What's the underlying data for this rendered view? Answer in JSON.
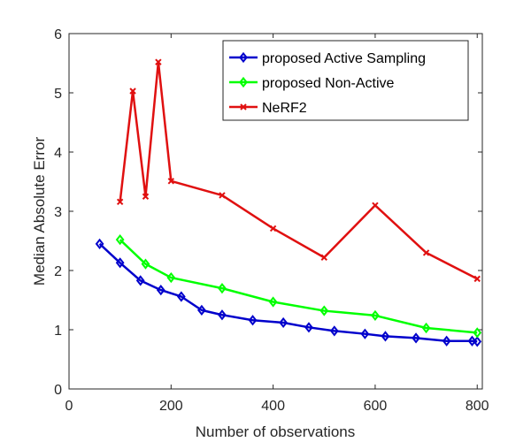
{
  "chart_data": {
    "type": "line",
    "title": "",
    "xlabel": "Number of observations",
    "ylabel": "Median Absolute Error",
    "xlim": [
      0,
      810
    ],
    "ylim": [
      0,
      6
    ],
    "xticks": [
      0,
      200,
      400,
      600,
      800
    ],
    "yticks": [
      0,
      1,
      2,
      3,
      4,
      5,
      6
    ],
    "grid": false,
    "legend_position": "top-right",
    "series": [
      {
        "name": "proposed Active Sampling",
        "color": "#0000cc",
        "marker": "diamond",
        "x": [
          60,
          100,
          140,
          180,
          220,
          260,
          300,
          360,
          420,
          470,
          520,
          580,
          620,
          680,
          740,
          790,
          800
        ],
        "y": [
          2.45,
          2.13,
          1.83,
          1.67,
          1.56,
          1.33,
          1.25,
          1.16,
          1.12,
          1.04,
          0.98,
          0.93,
          0.89,
          0.86,
          0.81,
          0.81,
          0.8
        ]
      },
      {
        "name": "proposed Non-Active",
        "color": "#00ff00",
        "marker": "diamond",
        "x": [
          100,
          150,
          200,
          300,
          400,
          500,
          600,
          700,
          800
        ],
        "y": [
          2.52,
          2.11,
          1.88,
          1.7,
          1.47,
          1.32,
          1.24,
          1.03,
          0.95
        ]
      },
      {
        "name": "NeRF2",
        "color": "#e01010",
        "marker": "x",
        "x": [
          100,
          125,
          150,
          175,
          200,
          300,
          400,
          500,
          600,
          700,
          800
        ],
        "y": [
          3.16,
          5.03,
          3.25,
          5.52,
          3.51,
          3.27,
          2.71,
          2.22,
          3.1,
          2.3,
          1.86
        ]
      }
    ]
  }
}
